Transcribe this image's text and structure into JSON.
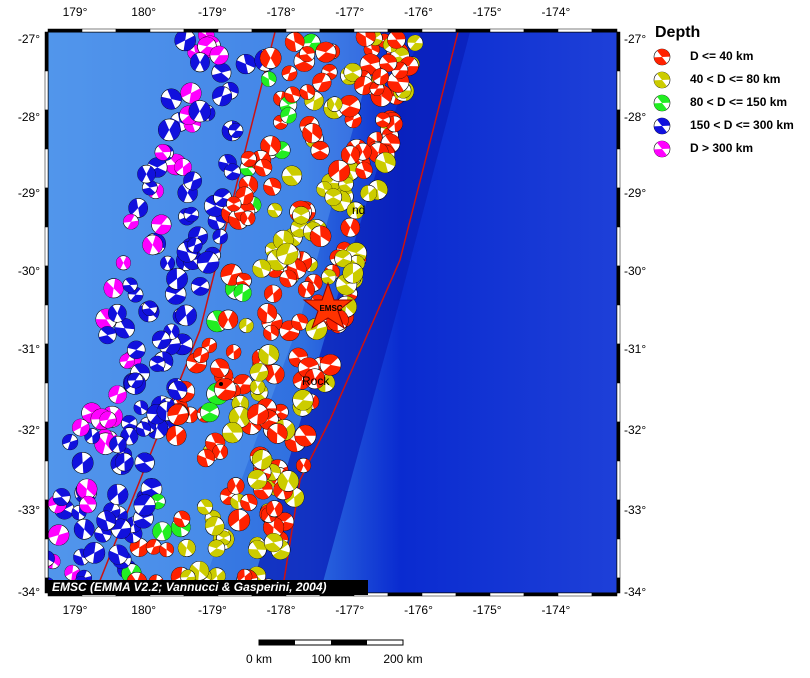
{
  "map": {
    "x_ticks": [
      "179°",
      "180°",
      "-179°",
      "-178°",
      "-177°",
      "-176°",
      "-175°",
      "-174°"
    ],
    "y_ticks": [
      "-27°",
      "-28°",
      "-29°",
      "-30°",
      "-31°",
      "-32°",
      "-33°",
      "-34°"
    ],
    "credit": "EMSC (EMMA V2.2; Vannucci & Gasperini, 2004)",
    "star_label": "EMSC",
    "place_labels": [
      "nd",
      "Rock"
    ]
  },
  "legend": {
    "title": "Depth",
    "items": [
      {
        "label": "D <= 40 km",
        "color": "#ff2200"
      },
      {
        "label": "40 < D <= 80 km",
        "color": "#cccc00"
      },
      {
        "label": "80 < D <= 150 km",
        "color": "#22ee22"
      },
      {
        "label": "150 < D <= 300 km",
        "color": "#1111dd"
      },
      {
        "label": "D > 300 km",
        "color": "#ff00ff"
      }
    ]
  },
  "scale_bar": {
    "labels": [
      "0 km",
      "100 km",
      "200 km"
    ]
  }
}
